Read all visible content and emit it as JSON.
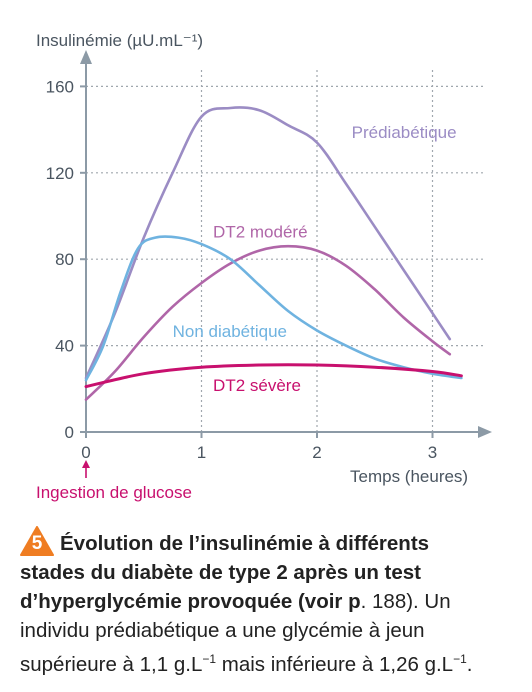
{
  "chart_data": {
    "type": "line",
    "ylabel": "Insulinémie (µU.mL⁻¹)",
    "xlabel": "Temps (heures)",
    "annotation": "Ingestion de glucose",
    "xlim": [
      0,
      3.4
    ],
    "ylim": [
      0,
      175
    ],
    "xticks": [
      0,
      1,
      2,
      3
    ],
    "yticks": [
      0,
      40,
      80,
      120,
      160
    ],
    "grid": true,
    "series": [
      {
        "name": "Prédiabétique",
        "color": "#9b8cc4",
        "x": [
          0,
          0.25,
          0.5,
          0.75,
          1.0,
          1.25,
          1.5,
          1.75,
          2.0,
          2.25,
          2.5,
          2.75,
          3.0,
          3.15
        ],
        "y": [
          25,
          55,
          90,
          120,
          146,
          150,
          149,
          142,
          134,
          115,
          95,
          75,
          55,
          43
        ]
      },
      {
        "name": "DT2 modéré",
        "color": "#b066a8",
        "x": [
          0,
          0.25,
          0.5,
          0.75,
          1.0,
          1.25,
          1.5,
          1.75,
          2.0,
          2.25,
          2.5,
          2.75,
          3.0,
          3.15
        ],
        "y": [
          15,
          28,
          44,
          58,
          69,
          78,
          84,
          86,
          84,
          77,
          66,
          53,
          42,
          36
        ]
      },
      {
        "name": "Non diabétique",
        "color": "#6fb3e0",
        "x": [
          0,
          0.15,
          0.3,
          0.45,
          0.6,
          0.8,
          1.0,
          1.25,
          1.5,
          1.75,
          2.0,
          2.25,
          2.5,
          2.75,
          3.0,
          3.25
        ],
        "y": [
          24,
          40,
          65,
          85,
          90,
          90,
          87,
          80,
          68,
          56,
          47,
          40,
          34,
          30,
          27,
          25
        ]
      },
      {
        "name": "DT2 sévère",
        "color": "#c8106e",
        "x": [
          0,
          0.5,
          1.0,
          1.5,
          2.0,
          2.5,
          3.0,
          3.25
        ],
        "y": [
          21,
          27,
          30,
          31,
          31,
          30,
          28,
          26
        ]
      }
    ]
  },
  "caption": {
    "number": "5",
    "title_l1": "Évolution de l’insulinémie à différents",
    "title_l2": "stades du diabète de type 2 après un test",
    "title_l3": "d’hyperglycémie provoquée (voir p",
    "ref": ". 188). Un",
    "l4": "individu prédiabétique a une glycémie à jeun",
    "l5a": "supérieure à 1,1 g.L",
    "sup1": "−1",
    "l5b": " mais inférieure à 1,26 g.L",
    "sup2": "−1",
    "l5c": "."
  },
  "colors": {
    "axis": "#8c9aa6",
    "grid": "#a0a7ae",
    "text": "#4a5560",
    "badge": "#ef7d22",
    "annotation": "#c8106e"
  }
}
